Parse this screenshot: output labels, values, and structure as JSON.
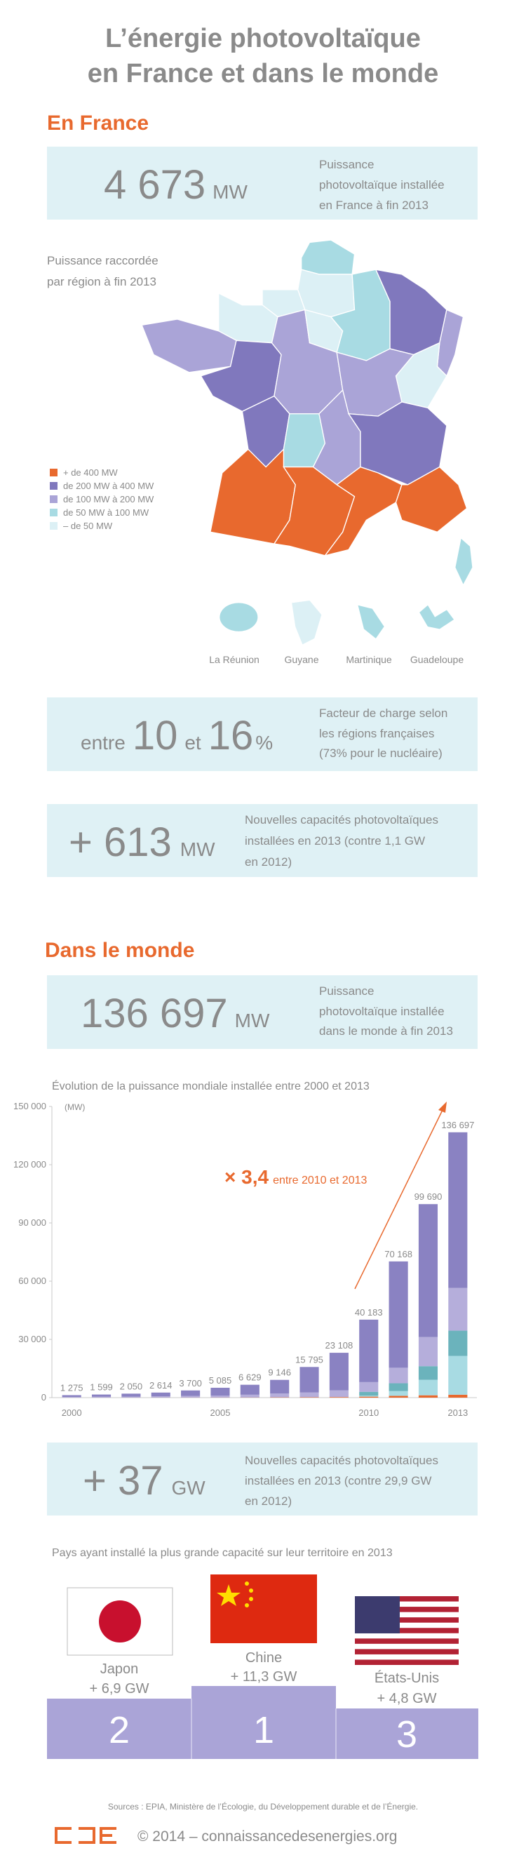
{
  "header": {
    "title_lines": [
      "L’énergie photovoltaïque",
      "en France et dans le monde"
    ]
  },
  "france": {
    "heading": "En France",
    "installed": {
      "value": "4 673",
      "unit": "MW",
      "description": [
        "Puissance",
        "photovoltaïque installée",
        "en France à fin 2013"
      ]
    },
    "map": {
      "caption": [
        "Puissance raccordée",
        "par région à fin 2013"
      ],
      "legend": [
        {
          "label": "+ de 400 MW",
          "color": "#e8692e"
        },
        {
          "label": "de 200 MW à 400 MW",
          "color": "#8078bd"
        },
        {
          "label": "de 100 MW à 200 MW",
          "color": "#aaa4d7"
        },
        {
          "label": "de 50 MW à 100 MW",
          "color": "#a8dbe3"
        },
        {
          "label": "– de 50 MW",
          "color": "#dcf0f5"
        }
      ],
      "overseas": [
        "La Réunion",
        "Guyane",
        "Martinique",
        "Guadeloupe"
      ]
    },
    "load_factor": {
      "prefix": "entre",
      "low": "10",
      "middle": "et",
      "high": "16",
      "unit": "%",
      "description": [
        "Facteur de charge selon",
        "les régions françaises",
        "(73% pour le nucléaire)"
      ]
    },
    "new_capacity": {
      "value": "+ 613",
      "unit": "MW",
      "description": [
        "Nouvelles capacités photovoltaïques",
        "installées en 2013 (contre 1,1 GW",
        "en 2012)"
      ]
    }
  },
  "world": {
    "heading": "Dans le monde",
    "installed": {
      "value": "136 697",
      "unit": "MW",
      "description": [
        "Puissance",
        "photovoltaïque installée",
        "dans le monde à fin 2013"
      ]
    },
    "new_capacity": {
      "value": "+ 37",
      "unit": "GW",
      "description": [
        "Nouvelles capacités photovoltaïques",
        "installées en 2013 (contre 29,9 GW",
        "en 2012)"
      ]
    },
    "ranking": {
      "title": "Pays ayant installé la plus grande capacité sur leur territoire en 2013",
      "countries": [
        {
          "name": "Japon",
          "added": "+ 6,9 GW",
          "rank": "2"
        },
        {
          "name": "Chine",
          "added": "+ 11,3 GW",
          "rank": "1"
        },
        {
          "name": "États-Unis",
          "added": "+ 4,8 GW",
          "rank": "3"
        }
      ]
    }
  },
  "chart_data": {
    "type": "bar",
    "stacked": true,
    "title": "Évolution de la puissance mondiale installée entre 2000 et 2013",
    "unit_label": "(MW)",
    "categories": [
      "2000",
      null,
      null,
      null,
      null,
      "2005",
      null,
      null,
      null,
      null,
      "2010",
      null,
      null,
      "2013"
    ],
    "series": [
      {
        "color": "#e8692e",
        "values": [
          20,
          30,
          40,
          50,
          60,
          80,
          100,
          150,
          200,
          300,
          500,
          900,
          1200,
          1500
        ]
      },
      {
        "color": "#a8dbe3",
        "values": [
          0,
          0,
          0,
          0,
          0,
          0,
          0,
          0,
          0,
          0,
          500,
          2500,
          8000,
          20000
        ]
      },
      {
        "color": "#6bb3bc",
        "values": [
          0,
          0,
          0,
          0,
          0,
          0,
          0,
          0,
          0,
          0,
          2000,
          4000,
          7000,
          13000
        ]
      },
      {
        "color": "#b5aedb",
        "values": [
          300,
          400,
          500,
          600,
          800,
          1000,
          1400,
          2000,
          2500,
          3500,
          5000,
          8000,
          15000,
          22000
        ]
      },
      {
        "color": "#8a82c2",
        "values": [
          955,
          1169,
          1510,
          1964,
          2840,
          4005,
          5129,
          6996,
          13095,
          19308,
          32183,
          54768,
          68490,
          80197
        ]
      }
    ],
    "totals": [
      1275,
      1599,
      2050,
      2614,
      3700,
      5085,
      6629,
      9146,
      15795,
      23108,
      40183,
      70168,
      99690,
      136697
    ],
    "total_labels": [
      "1 275",
      "1 599",
      "2 050",
      "2 614",
      "3 700",
      "5 085",
      "6 629",
      "9 146",
      "15 795",
      "23 108",
      "40 183",
      "70 168",
      "99 690",
      "136 697"
    ],
    "ylim": [
      0,
      150000
    ],
    "yticks": [
      0,
      {
        "value": 30000,
        "label": "30 000"
      },
      {
        "value": 60000,
        "label": "60 000"
      },
      {
        "value": 90000,
        "label": "90 000"
      },
      {
        "value": 120000,
        "label": "120 000"
      },
      {
        "value": 150000,
        "label": "150 000"
      }
    ],
    "annotation": {
      "factor": "× 3,4",
      "text": "entre 2010 et 2013"
    }
  },
  "footer": {
    "sources": "Sources : EPIA, Ministère de l’Écologie, du Développement durable et de l’Énergie.",
    "copyright": "© 2014 – connaissancedesenergies.org"
  }
}
